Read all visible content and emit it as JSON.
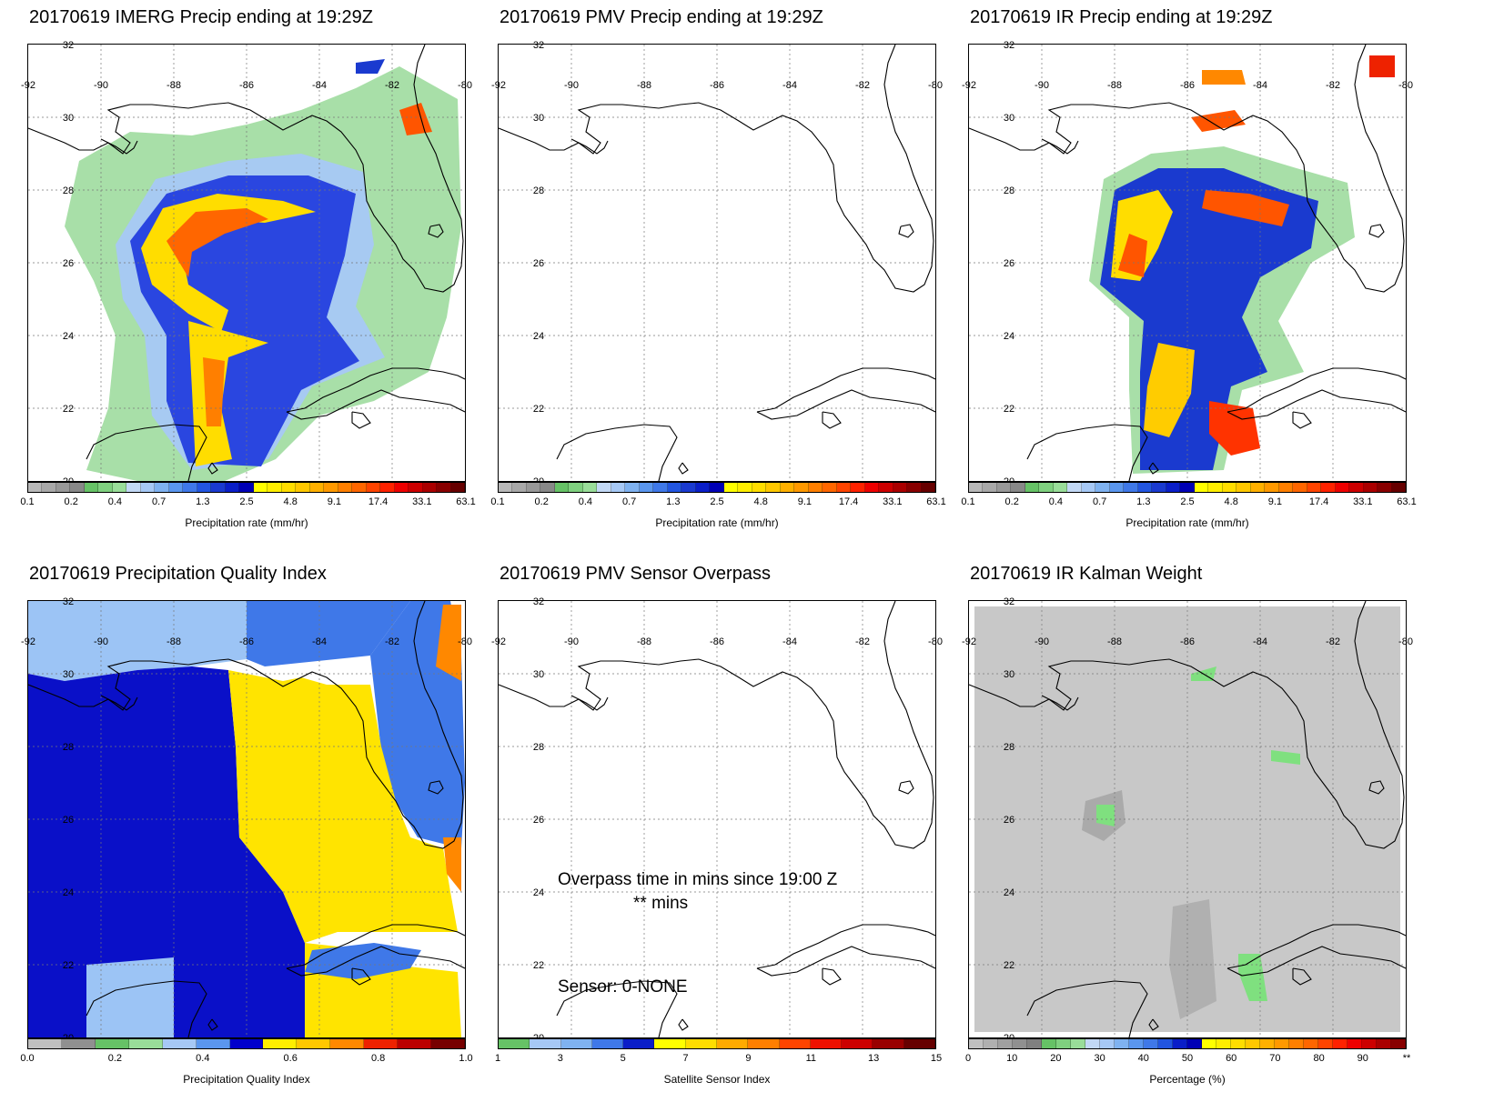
{
  "panels": [
    {
      "id": "imerg",
      "title": "20170619 IMERG Precip ending at 19:29Z",
      "colorbar": {
        "label": "Precipitation rate (mm/hr)",
        "ticks": [
          "0.1",
          "0.2",
          "0.4",
          "0.7",
          "1.3",
          "2.5",
          "4.8",
          "9.1",
          "17.4",
          "33.1",
          "63.1"
        ],
        "colors": [
          "#b8b8b8",
          "#a8a8a8",
          "#989898",
          "#888888",
          "#66c266",
          "#7fd07f",
          "#99dd99",
          "#c2d8f5",
          "#a6c8f5",
          "#7fb2f0",
          "#5a96ee",
          "#3f78e8",
          "#2255e0",
          "#1a3acf",
          "#0a1ec8",
          "#0000b5",
          "#ffff00",
          "#ffee00",
          "#ffdd00",
          "#ffc800",
          "#ffb000",
          "#ff9900",
          "#ff7f00",
          "#ff6600",
          "#ff4400",
          "#ff2200",
          "#ee0000",
          "#cc0000",
          "#aa0000",
          "#880000",
          "#660000"
        ]
      },
      "field": "precip"
    },
    {
      "id": "pmv",
      "title": "20170619 PMV Precip ending at 19:29Z",
      "colorbar": {
        "label": "Precipitation rate (mm/hr)",
        "ticks": [
          "0.1",
          "0.2",
          "0.4",
          "0.7",
          "1.3",
          "2.5",
          "4.8",
          "9.1",
          "17.4",
          "33.1",
          "63.1"
        ],
        "colors": [
          "#b8b8b8",
          "#a8a8a8",
          "#989898",
          "#888888",
          "#66c266",
          "#7fd07f",
          "#99dd99",
          "#c2d8f5",
          "#a6c8f5",
          "#7fb2f0",
          "#5a96ee",
          "#3f78e8",
          "#2255e0",
          "#1a3acf",
          "#0a1ec8",
          "#0000b5",
          "#ffff00",
          "#ffee00",
          "#ffdd00",
          "#ffc800",
          "#ffb000",
          "#ff9900",
          "#ff7f00",
          "#ff6600",
          "#ff4400",
          "#ff2200",
          "#ee0000",
          "#cc0000",
          "#aa0000",
          "#880000",
          "#660000"
        ]
      },
      "field": "none"
    },
    {
      "id": "ir",
      "title": "20170619 IR Precip ending at 19:29Z",
      "colorbar": {
        "label": "Precipitation rate (mm/hr)",
        "ticks": [
          "0.1",
          "0.2",
          "0.4",
          "0.7",
          "1.3",
          "2.5",
          "4.8",
          "9.1",
          "17.4",
          "33.1",
          "63.1"
        ],
        "colors": [
          "#b8b8b8",
          "#a8a8a8",
          "#989898",
          "#888888",
          "#66c266",
          "#7fd07f",
          "#99dd99",
          "#c2d8f5",
          "#a6c8f5",
          "#7fb2f0",
          "#5a96ee",
          "#3f78e8",
          "#2255e0",
          "#1a3acf",
          "#0a1ec8",
          "#0000b5",
          "#ffff00",
          "#ffee00",
          "#ffdd00",
          "#ffc800",
          "#ffb000",
          "#ff9900",
          "#ff7f00",
          "#ff6600",
          "#ff4400",
          "#ff2200",
          "#ee0000",
          "#cc0000",
          "#aa0000",
          "#880000",
          "#660000"
        ]
      },
      "field": "ir"
    },
    {
      "id": "pqi",
      "title": "20170619 Precipitation Quality Index",
      "colorbar": {
        "label": "Precipitation Quality Index",
        "ticks": [
          "0.0",
          "0.2",
          "0.4",
          "0.6",
          "0.8",
          "1.0"
        ],
        "colors": [
          "#c0c0c0",
          "#909090",
          "#66c266",
          "#99dd99",
          "#a6c8f5",
          "#5a96ee",
          "#0000cc",
          "#ffee00",
          "#ffc800",
          "#ff8800",
          "#ee2200",
          "#bb0000",
          "#770000"
        ]
      },
      "field": "pqi"
    },
    {
      "id": "sensor",
      "title": "20170619 PMV Sensor Overpass",
      "colorbar": {
        "label": "Satellite Sensor Index",
        "ticks": [
          "1",
          "3",
          "5",
          "7",
          "9",
          "11",
          "13",
          "15"
        ],
        "colors": [
          "#66c266",
          "#a6c8f5",
          "#7fb2f0",
          "#3f78e8",
          "#0a1ec8",
          "#ffff00",
          "#ffdd00",
          "#ffaa00",
          "#ff7f00",
          "#ff4400",
          "#ee1100",
          "#cc0000",
          "#990000",
          "#660000"
        ]
      },
      "field": "none",
      "overpass_line1": "Overpass time in mins since 19:00 Z",
      "overpass_line2": "** mins",
      "sensor_text": "Sensor:   0-NONE"
    },
    {
      "id": "kalman",
      "title": "20170619 IR Kalman Weight",
      "colorbar": {
        "label": "Percentage (%)",
        "ticks": [
          "0",
          "10",
          "20",
          "30",
          "40",
          "50",
          "60",
          "70",
          "80",
          "90",
          "**"
        ],
        "colors": [
          "#c0c0c0",
          "#b0b0b0",
          "#a0a0a0",
          "#909090",
          "#808080",
          "#66c266",
          "#7fd07f",
          "#99dd99",
          "#c2d8f5",
          "#a6c8f5",
          "#7fb2f0",
          "#5a96ee",
          "#3f78e8",
          "#2255e0",
          "#0a1ec8",
          "#0000b5",
          "#ffff00",
          "#ffee00",
          "#ffdd00",
          "#ffc800",
          "#ffb000",
          "#ff9900",
          "#ff7f00",
          "#ff6600",
          "#ff4400",
          "#ff2200",
          "#ee0000",
          "#cc0000",
          "#aa0000",
          "#880000"
        ]
      },
      "field": "kalman"
    }
  ],
  "map": {
    "lon_ticks": [
      "-92",
      "-90",
      "-88",
      "-86",
      "-84",
      "-82",
      "-80"
    ],
    "lat_ticks": [
      "32",
      "30",
      "28",
      "26",
      "24",
      "22",
      "20"
    ]
  }
}
